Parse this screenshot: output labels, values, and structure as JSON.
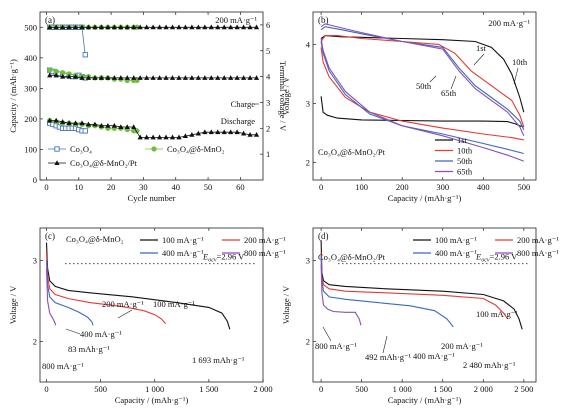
{
  "chart_data": [
    {
      "panel": "(a)",
      "type": "scatter",
      "annotation": "200 mA·g⁻¹",
      "xlabel": "Cycle number",
      "ylabel": "Capacity / (mAh·g⁻¹)",
      "ylabel_right": "Terminal voltage / V",
      "xlim": [
        -2,
        67
      ],
      "ylim": [
        0,
        550
      ],
      "ylim_right": [
        0,
        6.5
      ],
      "x_ticks": [
        "0",
        "10",
        "20",
        "30",
        "40",
        "50",
        "60"
      ],
      "y_ticks": [
        "0",
        "100",
        "200",
        "300",
        "400",
        "500"
      ],
      "y_ticks_right": [
        "1",
        "2",
        "3",
        "4",
        "5",
        "6"
      ],
      "texts": {
        "charge": "Charge",
        "discharge": "Discharge"
      },
      "legend": [
        {
          "label": "Co₃O₄",
          "color": "#4a72c4",
          "marker": "square-open"
        },
        {
          "label": "Co₃O₄@δ-MnO₂",
          "color": "#6fbf3f",
          "marker": "circle"
        },
        {
          "label": "Co₃O₄@δ-MnO₂/Pt",
          "color": "#111111",
          "marker": "triangle"
        }
      ],
      "series": [
        {
          "color": "#4a72c4",
          "marker": "square-open",
          "axis": "left",
          "x": [
            1,
            2,
            3,
            4,
            5,
            6,
            7,
            8,
            9,
            10,
            11,
            12
          ],
          "y": [
            500,
            500,
            500,
            500,
            500,
            500,
            500,
            500,
            500,
            500,
            500,
            410
          ]
        },
        {
          "color": "#6fbf3f",
          "marker": "circle",
          "axis": "left",
          "x": [
            1,
            3,
            5,
            7,
            9,
            11,
            13,
            15,
            17,
            19,
            21,
            23,
            25,
            27,
            28
          ],
          "y": [
            500,
            500,
            500,
            500,
            500,
            500,
            500,
            500,
            500,
            500,
            500,
            500,
            500,
            500,
            500
          ]
        },
        {
          "color": "#111111",
          "marker": "triangle",
          "axis": "left",
          "x": [
            1,
            3,
            5,
            7,
            9,
            11,
            13,
            15,
            17,
            19,
            21,
            23,
            25,
            27,
            29,
            31,
            33,
            35,
            37,
            39,
            41,
            43,
            45,
            47,
            49,
            51,
            53,
            55,
            57,
            59,
            61,
            63,
            65
          ],
          "y": [
            500,
            500,
            500,
            500,
            500,
            500,
            500,
            500,
            500,
            500,
            500,
            500,
            500,
            500,
            500,
            500,
            500,
            500,
            500,
            500,
            500,
            500,
            500,
            500,
            500,
            500,
            500,
            500,
            500,
            500,
            500,
            500,
            500
          ]
        },
        {
          "color": "#4a72c4",
          "marker": "square-open",
          "axis": "right",
          "x": [
            1,
            2,
            3,
            4,
            5,
            6,
            7,
            8,
            9,
            10,
            11,
            12
          ],
          "y": [
            4.25,
            4.2,
            4.15,
            4.1,
            4.1,
            4.05,
            4.05,
            4.0,
            4.0,
            4.05,
            4.0,
            3.95
          ]
        },
        {
          "color": "#6fbf3f",
          "marker": "circle",
          "axis": "right",
          "x": [
            1,
            3,
            5,
            7,
            9,
            11,
            13,
            15,
            17,
            19,
            21,
            23,
            25,
            27,
            28
          ],
          "y": [
            4.25,
            4.2,
            4.15,
            4.1,
            4.05,
            4.0,
            4.0,
            3.95,
            3.95,
            3.95,
            3.9,
            3.9,
            3.85,
            3.85,
            3.85
          ]
        },
        {
          "color": "#111111",
          "marker": "triangle",
          "axis": "right",
          "x": [
            1,
            3,
            5,
            7,
            9,
            11,
            13,
            15,
            17,
            19,
            21,
            23,
            25,
            27,
            29,
            31,
            33,
            35,
            37,
            39,
            41,
            43,
            45,
            47,
            49,
            51,
            53,
            55,
            57,
            59,
            61,
            63,
            65
          ],
          "y": [
            4.05,
            4.05,
            4.0,
            4.0,
            4.0,
            3.95,
            3.95,
            3.95,
            3.95,
            3.95,
            3.95,
            3.95,
            3.95,
            3.95,
            3.95,
            3.95,
            3.95,
            3.95,
            3.95,
            3.95,
            3.95,
            3.95,
            3.95,
            3.95,
            3.95,
            3.95,
            3.95,
            3.95,
            3.95,
            3.95,
            3.95,
            3.95,
            3.95
          ]
        },
        {
          "color": "#4a72c4",
          "marker": "square-open",
          "axis": "right",
          "x": [
            1,
            2,
            3,
            4,
            5,
            6,
            7,
            8,
            9,
            10,
            11,
            12
          ],
          "y": [
            2.2,
            2.15,
            2.1,
            2.05,
            2.0,
            2.0,
            2.0,
            2.0,
            2.0,
            1.95,
            1.9,
            1.9
          ]
        },
        {
          "color": "#6fbf3f",
          "marker": "circle",
          "axis": "right",
          "x": [
            1,
            3,
            5,
            7,
            9,
            11,
            13,
            15,
            17,
            19,
            21,
            23,
            25,
            27,
            28
          ],
          "y": [
            2.3,
            2.25,
            2.2,
            2.2,
            2.15,
            2.15,
            2.1,
            2.1,
            2.05,
            2.0,
            2.0,
            2.0,
            1.95,
            1.9,
            1.9
          ]
        },
        {
          "color": "#111111",
          "marker": "triangle",
          "axis": "right",
          "x": [
            1,
            3,
            5,
            7,
            9,
            11,
            13,
            15,
            17,
            19,
            21,
            23,
            25,
            27,
            29,
            31,
            33,
            35,
            37,
            39,
            41,
            43,
            45,
            47,
            49,
            51,
            53,
            55,
            57,
            59,
            61,
            63,
            65
          ],
          "y": [
            2.3,
            2.3,
            2.25,
            2.2,
            2.2,
            2.2,
            2.15,
            2.15,
            2.1,
            2.1,
            2.1,
            2.05,
            2.05,
            2.05,
            1.65,
            1.65,
            1.65,
            1.65,
            1.65,
            1.65,
            1.65,
            1.7,
            1.75,
            1.8,
            1.85,
            1.85,
            1.85,
            1.85,
            1.85,
            1.85,
            1.8,
            1.75,
            1.75
          ]
        }
      ]
    },
    {
      "panel": "(b)",
      "type": "line",
      "annotation": "200 mA·g⁻¹",
      "subtitle": "Co₃O₄@δ-MnO₂/Pt",
      "xlabel": "Capacity / (mAh·g⁻¹)",
      "ylabel": "Voltage / V",
      "xlim": [
        -20,
        530
      ],
      "ylim": [
        1.7,
        4.55
      ],
      "x_ticks": [
        "0",
        "100",
        "200",
        "300",
        "400",
        "500"
      ],
      "y_ticks": [
        "2",
        "3",
        "4"
      ],
      "curve_labels": [
        "1st",
        "10th",
        "50th",
        "65th"
      ],
      "legend": [
        {
          "label": "1st",
          "color": "#111111"
        },
        {
          "label": "10th",
          "color": "#e53935"
        },
        {
          "label": "50th",
          "color": "#3a68c8"
        },
        {
          "label": "65th",
          "color": "#8c4fb0"
        }
      ],
      "series": [
        {
          "color": "#111111",
          "x": [
            0,
            5,
            15,
            40,
            100,
            200,
            300,
            400,
            460,
            480,
            490,
            500
          ],
          "y": [
            3.12,
            2.85,
            2.8,
            2.75,
            2.72,
            2.71,
            2.7,
            2.7,
            2.69,
            2.65,
            2.62,
            2.6
          ]
        },
        {
          "color": "#111111",
          "x": [
            0,
            10,
            50,
            100,
            200,
            300,
            380,
            420,
            450,
            470,
            490,
            500
          ],
          "y": [
            4.1,
            4.15,
            4.13,
            4.12,
            4.1,
            4.08,
            4.05,
            3.95,
            3.75,
            3.5,
            3.1,
            2.85
          ]
        },
        {
          "color": "#e53935",
          "x": [
            0,
            5,
            20,
            60,
            120,
            200,
            300,
            400,
            470,
            500
          ],
          "y": [
            3.95,
            3.7,
            3.45,
            3.1,
            2.85,
            2.7,
            2.58,
            2.48,
            2.42,
            2.38
          ]
        },
        {
          "color": "#e53935",
          "x": [
            0,
            10,
            40,
            100,
            200,
            290,
            330,
            370,
            410,
            440,
            470,
            490,
            500
          ],
          "y": [
            4.05,
            4.15,
            4.15,
            4.1,
            4.05,
            4.0,
            3.85,
            3.55,
            3.35,
            3.2,
            3.05,
            2.8,
            2.6
          ]
        },
        {
          "color": "#3a68c8",
          "x": [
            0,
            5,
            20,
            60,
            120,
            200,
            300,
            400,
            460,
            500
          ],
          "y": [
            4.05,
            3.85,
            3.55,
            3.15,
            2.82,
            2.62,
            2.48,
            2.32,
            2.22,
            2.15
          ]
        },
        {
          "color": "#3a68c8",
          "x": [
            0,
            10,
            50,
            100,
            200,
            300,
            340,
            380,
            420,
            460,
            490,
            500
          ],
          "y": [
            4.25,
            4.3,
            4.25,
            4.18,
            4.05,
            3.95,
            3.6,
            3.3,
            3.1,
            2.9,
            2.7,
            2.55
          ]
        },
        {
          "color": "#8c4fb0",
          "x": [
            0,
            5,
            20,
            60,
            120,
            200,
            300,
            400,
            460,
            500
          ],
          "y": [
            4.1,
            3.9,
            3.6,
            3.2,
            2.85,
            2.62,
            2.45,
            2.25,
            2.12,
            2.02
          ]
        },
        {
          "color": "#8c4fb0",
          "x": [
            0,
            10,
            50,
            100,
            200,
            300,
            340,
            380,
            420,
            460,
            490,
            500
          ],
          "y": [
            4.3,
            4.35,
            4.28,
            4.2,
            4.05,
            3.92,
            3.55,
            3.25,
            3.05,
            2.85,
            2.6,
            2.45
          ]
        }
      ]
    },
    {
      "panel": "(c)",
      "type": "line",
      "subtitle": "Co₃O₄@δ-MnO₂",
      "eov_label": "E",
      "eov_sub": "ocv",
      "eov_value": "=2.96 V",
      "eov": 2.96,
      "xlabel": "Capacity / (mAh·g⁻¹)",
      "ylabel": "Voltage / V",
      "xlim": [
        -60,
        2000
      ],
      "ylim": [
        1.5,
        3.4
      ],
      "x_ticks": [
        "0",
        "500",
        "1 000",
        "1 500",
        "2 000"
      ],
      "y_ticks": [
        "2",
        "3"
      ],
      "annotations": [
        "200 mA·g⁻¹",
        "100 mA·g⁻¹",
        "400 mA·g⁻¹",
        "83 mAh·g⁻¹",
        "800 mA·g⁻¹",
        "1 693 mAh·g⁻¹"
      ],
      "legend": [
        {
          "label": "100 mA·g⁻¹",
          "color": "#111111"
        },
        {
          "label": "200 mA·g⁻¹",
          "color": "#e53935"
        },
        {
          "label": "400 mA·g⁻¹",
          "color": "#3a68c8"
        },
        {
          "label": "800 mA·g⁻¹",
          "color": "#8c4fb0"
        }
      ],
      "series": [
        {
          "color": "#111111",
          "x": [
            0,
            10,
            30,
            80,
            200,
            400,
            800,
            1200,
            1500,
            1620,
            1670,
            1693
          ],
          "y": [
            3.22,
            2.9,
            2.75,
            2.68,
            2.63,
            2.6,
            2.55,
            2.48,
            2.42,
            2.35,
            2.25,
            2.15
          ]
        },
        {
          "color": "#e53935",
          "x": [
            0,
            10,
            30,
            80,
            200,
            400,
            700,
            900,
            1000,
            1060,
            1100
          ],
          "y": [
            3.1,
            2.8,
            2.65,
            2.58,
            2.53,
            2.48,
            2.43,
            2.38,
            2.33,
            2.28,
            2.22
          ]
        },
        {
          "color": "#3a68c8",
          "x": [
            0,
            10,
            30,
            80,
            200,
            300,
            380,
            420,
            430
          ],
          "y": [
            3.0,
            2.7,
            2.55,
            2.48,
            2.42,
            2.36,
            2.3,
            2.24,
            2.2
          ]
        },
        {
          "color": "#8c4fb0",
          "x": [
            0,
            10,
            30,
            60,
            80,
            83
          ],
          "y": [
            2.9,
            2.5,
            2.35,
            2.28,
            2.22,
            2.2
          ]
        }
      ]
    },
    {
      "panel": "(d)",
      "type": "line",
      "subtitle": "Co₃O₄@δ-MnO₂/Pt",
      "eov_label": "E",
      "eov_sub": "ocv",
      "eov_value": "=2.96 V",
      "eov": 2.96,
      "xlabel": "Capacity / (mAh·g⁻¹)",
      "ylabel": "Voltage / V",
      "xlim": [
        -100,
        2650
      ],
      "ylim": [
        1.5,
        3.4
      ],
      "x_ticks": [
        "0",
        "500",
        "1 000",
        "1 500",
        "2 000",
        "2 500"
      ],
      "y_ticks": [
        "2",
        "3"
      ],
      "annotations": [
        "100 mA·g⁻¹",
        "800 mA·g⁻¹",
        "492 mAh·g⁻¹",
        "400 mA·g⁻¹",
        "200 mA·g⁻¹",
        "2 480 mAh·g⁻¹"
      ],
      "legend": [
        {
          "label": "100 mA·g⁻¹",
          "color": "#111111"
        },
        {
          "label": "200 mA·g⁻¹",
          "color": "#e53935"
        },
        {
          "label": "400 mA·g⁻¹",
          "color": "#3a68c8"
        },
        {
          "label": "800 mA·g⁻¹",
          "color": "#8c4fb0"
        }
      ],
      "series": [
        {
          "color": "#111111",
          "x": [
            0,
            10,
            30,
            100,
            300,
            800,
            1500,
            2000,
            2250,
            2380,
            2440,
            2480
          ],
          "y": [
            3.25,
            2.85,
            2.75,
            2.7,
            2.68,
            2.65,
            2.62,
            2.58,
            2.5,
            2.4,
            2.28,
            2.15
          ]
        },
        {
          "color": "#e53935",
          "x": [
            0,
            10,
            30,
            100,
            300,
            800,
            1500,
            2000,
            2150,
            2250,
            2300
          ],
          "y": [
            3.1,
            2.8,
            2.7,
            2.65,
            2.62,
            2.6,
            2.57,
            2.53,
            2.45,
            2.35,
            2.28
          ]
        },
        {
          "color": "#3a68c8",
          "x": [
            0,
            10,
            30,
            100,
            300,
            700,
            1100,
            1400,
            1550,
            1630
          ],
          "y": [
            3.05,
            2.75,
            2.62,
            2.55,
            2.52,
            2.48,
            2.44,
            2.38,
            2.28,
            2.18
          ]
        },
        {
          "color": "#8c4fb0",
          "x": [
            0,
            10,
            30,
            80,
            150,
            300,
            420,
            470,
            492
          ],
          "y": [
            2.95,
            2.6,
            2.45,
            2.4,
            2.37,
            2.36,
            2.36,
            2.28,
            2.2
          ]
        }
      ]
    }
  ]
}
